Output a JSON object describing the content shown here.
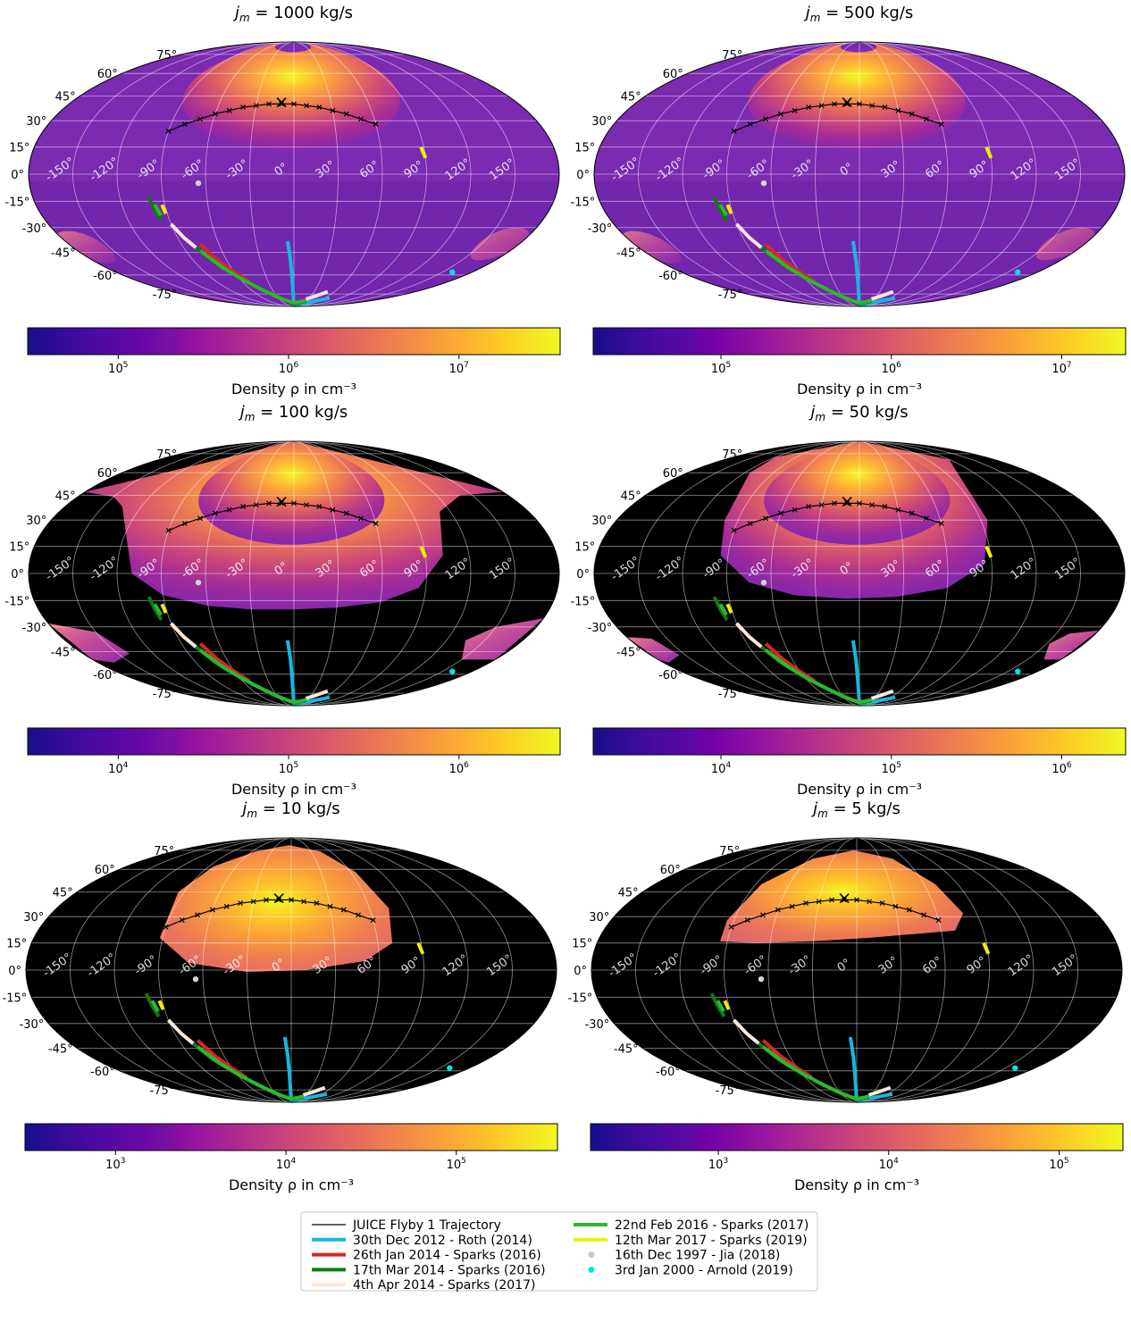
{
  "colormap": [
    "#0d0887",
    "#46039f",
    "#7201a8",
    "#9c179e",
    "#bd3786",
    "#d8576b",
    "#ed7953",
    "#fb9f3a",
    "#fdca26",
    "#f0f921"
  ],
  "chart_data": {
    "type": "heatmap",
    "projection": "mollweide",
    "lat_ticks": [
      "75°",
      "60°",
      "45°",
      "30°",
      "15°",
      "0°",
      "-15°",
      "-30°",
      "-45°",
      "-60°",
      "-75°"
    ],
    "lon_ticks": [
      "-150°",
      "-120°",
      "-90°",
      "-60°",
      "-30°",
      "0°",
      "30°",
      "60°",
      "90°",
      "120°",
      "150°"
    ],
    "colorbar_label": "Density ρ in cm⁻³",
    "panels": [
      {
        "title_var": "j",
        "title_sub": "m",
        "title_rest": " = 1000 kg/s",
        "cbar_ticks": [
          {
            "base": "10",
            "exp": "5",
            "frac": 0.17
          },
          {
            "base": "10",
            "exp": "6",
            "frac": 0.49
          },
          {
            "base": "10",
            "exp": "7",
            "frac": 0.81
          }
        ],
        "support": "full",
        "dark_frac": 0.28
      },
      {
        "title_var": "j",
        "title_sub": "m",
        "title_rest": " = 500 kg/s",
        "cbar_ticks": [
          {
            "base": "10",
            "exp": "5",
            "frac": 0.24
          },
          {
            "base": "10",
            "exp": "6",
            "frac": 0.56
          },
          {
            "base": "10",
            "exp": "7",
            "frac": 0.88
          }
        ],
        "support": "full",
        "dark_frac": 0.2
      },
      {
        "title_var": "j",
        "title_sub": "m",
        "title_rest": " = 100 kg/s",
        "cbar_ticks": [
          {
            "base": "10",
            "exp": "4",
            "frac": 0.17
          },
          {
            "base": "10",
            "exp": "5",
            "frac": 0.49
          },
          {
            "base": "10",
            "exp": "6",
            "frac": 0.81
          }
        ],
        "support": "wide",
        "dark_frac": 0.28
      },
      {
        "title_var": "j",
        "title_sub": "m",
        "title_rest": " = 50 kg/s",
        "cbar_ticks": [
          {
            "base": "10",
            "exp": "4",
            "frac": 0.24
          },
          {
            "base": "10",
            "exp": "5",
            "frac": 0.56
          },
          {
            "base": "10",
            "exp": "6",
            "frac": 0.88
          }
        ],
        "support": "mid",
        "dark_frac": 0.2
      },
      {
        "title_var": "j",
        "title_sub": "m",
        "title_rest": " = 10 kg/s",
        "cbar_ticks": [
          {
            "base": "10",
            "exp": "3",
            "frac": 0.17
          },
          {
            "base": "10",
            "exp": "4",
            "frac": 0.49
          },
          {
            "base": "10",
            "exp": "5",
            "frac": 0.81
          }
        ],
        "support": "small",
        "dark_frac": 0.28
      },
      {
        "title_var": "j",
        "title_sub": "m",
        "title_rest": " = 5 kg/s",
        "cbar_ticks": [
          {
            "base": "10",
            "exp": "3",
            "frac": 0.24
          },
          {
            "base": "10",
            "exp": "4",
            "frac": 0.56
          },
          {
            "base": "10",
            "exp": "5",
            "frac": 0.88
          }
        ],
        "support": "tiny",
        "dark_frac": 0.2
      }
    ],
    "juice_trajectory": {
      "lon": [
        -90,
        -80,
        -70,
        -60,
        -50,
        -40,
        -30,
        -20,
        -10,
        0,
        10,
        20,
        30,
        40,
        50,
        60
      ],
      "lat": [
        24,
        28,
        31,
        34,
        36,
        38,
        39,
        40,
        40,
        40,
        39,
        38,
        36,
        34,
        31,
        28
      ],
      "closest_approach": {
        "lon": -10,
        "lat": 41
      }
    },
    "observations": [
      {
        "label": "30th Dec 2012 - Roth (2014)",
        "color": "#17b6e0",
        "marker": "line",
        "segments": [
          [
            [
              -5,
              -38
            ],
            [
              -3,
              -50
            ],
            [
              -2,
              -62
            ],
            [
              -1,
              -76
            ],
            [
              0,
              -88
            ]
          ],
          [
            [
              0,
              -88
            ],
            [
              25,
              -85
            ],
            [
              50,
              -82
            ],
            [
              70,
              -79
            ]
          ]
        ]
      },
      {
        "label": "26th Jan 2014 - Sparks (2016)",
        "color": "#d62728",
        "marker": "line",
        "segments": [
          [
            [
              -75,
              -40
            ],
            [
              -68,
              -50
            ],
            [
              -60,
              -58
            ],
            [
              -52,
              -65
            ]
          ]
        ]
      },
      {
        "label": "17th Mar 2014 - Sparks (2016)",
        "color": "#107a10",
        "marker": "line",
        "segments": [
          [
            [
              -100,
              -13
            ],
            [
              -98,
              -20
            ],
            [
              -96,
              -26
            ]
          ],
          [
            [
              -80,
              -42
            ],
            [
              -72,
              -52
            ],
            [
              -62,
              -60
            ],
            [
              -50,
              -68
            ],
            [
              -38,
              -74
            ],
            [
              -25,
              -79
            ],
            [
              -10,
              -83
            ],
            [
              0,
              -85
            ],
            [
              15,
              -84
            ],
            [
              30,
              -82
            ]
          ]
        ]
      },
      {
        "label": "4th Apr 2014 - Sparks (2017)",
        "color": "#fde8d8",
        "marker": "line",
        "segments": [
          [
            [
              -90,
              -28
            ],
            [
              -85,
              -36
            ],
            [
              -80,
              -42
            ]
          ],
          [
            [
              25,
              -80
            ],
            [
              38,
              -77
            ],
            [
              50,
              -73
            ]
          ]
        ]
      },
      {
        "label": "22nd Feb 2016 - Sparks (2017)",
        "color": "#2db82d",
        "marker": "line",
        "segments": [
          [
            [
              -97,
              -17
            ],
            [
              -95,
              -23
            ]
          ],
          [
            [
              -78,
              -44
            ],
            [
              -68,
              -55
            ],
            [
              -58,
              -63
            ],
            [
              -45,
              -71
            ],
            [
              -30,
              -78
            ],
            [
              -15,
              -82
            ],
            [
              0,
              -84
            ],
            [
              15,
              -83
            ],
            [
              28,
              -81
            ]
          ]
        ]
      },
      {
        "label": "12th Mar 2017 - Sparks (2019)",
        "color": "#f2ee00",
        "marker": "line",
        "segments": [
          [
            [
              88,
              15
            ],
            [
              90,
              9
            ]
          ],
          [
            [
              -92,
              -17
            ],
            [
              -91,
              -22
            ]
          ]
        ]
      },
      {
        "label": "16th Dec 1997 - Jia (2018)",
        "color": "#d3d3d3",
        "marker": "dot",
        "points": [
          [
            -65,
            -5
          ]
        ]
      },
      {
        "label": "3rd Jan 2000 - Arnold (2019)",
        "color": "#00e5e5",
        "marker": "dot",
        "points": [
          [
            160,
            -58
          ]
        ]
      }
    ],
    "legend_entries": [
      {
        "label": "JUICE Flyby 1 Trajectory",
        "color": "#000000",
        "marker": "thin"
      },
      {
        "label": "30th Dec 2012 - Roth (2014)",
        "color": "#17b6e0",
        "marker": "line"
      },
      {
        "label": "26th Jan 2014 - Sparks (2016)",
        "color": "#d62728",
        "marker": "line"
      },
      {
        "label": "17th Mar 2014 - Sparks (2016)",
        "color": "#107a10",
        "marker": "line"
      },
      {
        "label": "4th Apr 2014 - Sparks (2017)",
        "color": "#fde8d8",
        "marker": "line"
      },
      {
        "label": "22nd Feb 2016 - Sparks (2017)",
        "color": "#2db82d",
        "marker": "line"
      },
      {
        "label": "12th Mar 2017 - Sparks (2019)",
        "color": "#f2ee00",
        "marker": "line"
      },
      {
        "label": "16th Dec 1997 - Jia (2018)",
        "color": "#c8c8c8",
        "marker": "dot"
      },
      {
        "label": "3rd Jan 2000 - Arnold (2019)",
        "color": "#00e5e5",
        "marker": "dot"
      }
    ],
    "legend_placement": "bottom-center"
  }
}
